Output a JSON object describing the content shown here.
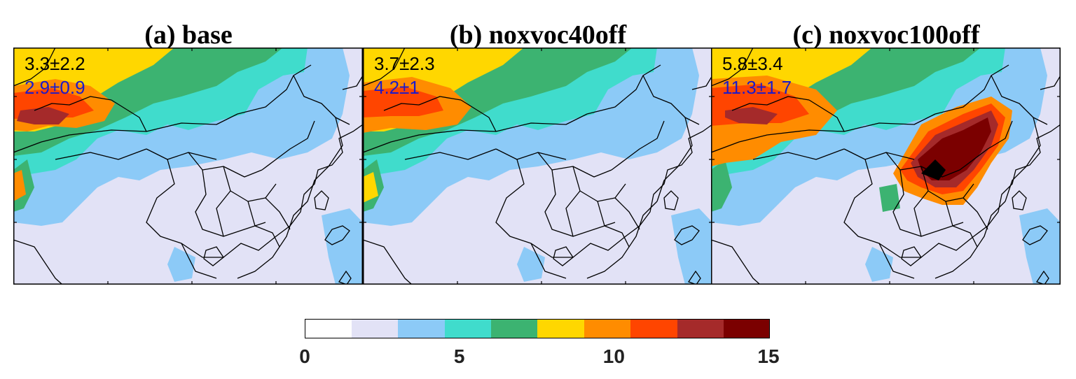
{
  "panels": [
    {
      "title": "(a) base",
      "stat_primary": "3.3±2.2",
      "stat_secondary": "2.9±0.9",
      "variant": "base"
    },
    {
      "title": "(b) noxvoc40off",
      "stat_primary": "3.7±2.3",
      "stat_secondary": "4.2±1",
      "variant": "noxvoc40off"
    },
    {
      "title": "(c) noxvoc100off",
      "stat_primary": "5.8±3.4",
      "stat_secondary": "11.3±1.7",
      "variant": "noxvoc100off"
    }
  ],
  "stat_colors": {
    "primary": "#000000",
    "secondary": "#1a1acc"
  },
  "colorbar": {
    "min": 0,
    "max": 15,
    "step": 1.5,
    "tick_labels": [
      "0",
      "5",
      "10",
      "15"
    ],
    "tick_values": [
      0,
      5,
      10,
      15
    ],
    "colors": [
      "#ffffff",
      "#e2e2f6",
      "#8ccaf7",
      "#40dccc",
      "#3cb371",
      "#ffd700",
      "#ff8c00",
      "#ff4500",
      "#a52a2a",
      "#7b0000"
    ]
  }
}
